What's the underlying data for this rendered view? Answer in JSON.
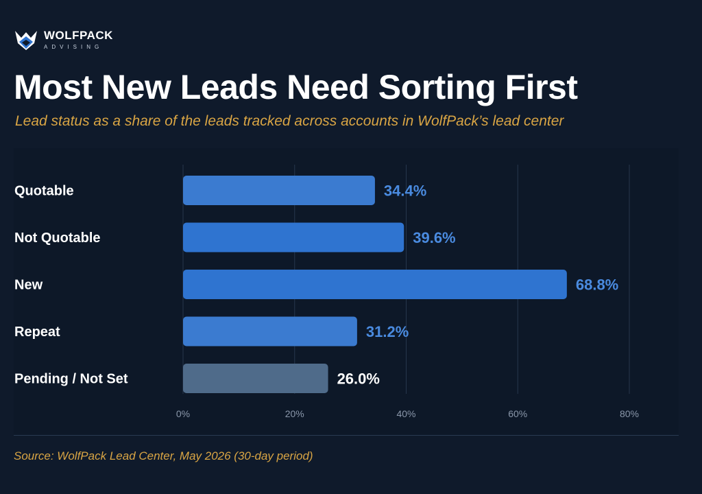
{
  "brand": {
    "name": "WOLFPACK",
    "tagline": "ADVISING"
  },
  "colors": {
    "background": "#0f1a2b",
    "accent": "#d9a544",
    "bar_primary": "#2f74d0",
    "bar_secondary": "#3b7bd0",
    "bar_muted": "#4f6b8a",
    "value_label": "#4a8be0"
  },
  "chart_data": {
    "type": "bar",
    "orientation": "horizontal",
    "title": "Most New Leads Need Sorting First",
    "subtitle": "Lead status as a share of the leads tracked across accounts in WolfPack’s lead center",
    "categories": [
      "Quotable",
      "Not Quotable",
      "New",
      "Repeat",
      "Pending / Not Set"
    ],
    "values": [
      34.4,
      39.6,
      68.8,
      31.2,
      26.0
    ],
    "value_labels": [
      "34.4%",
      "39.6%",
      "68.8%",
      "31.2%",
      "26.0%"
    ],
    "bar_colors": [
      "#3b7bd0",
      "#2f74d0",
      "#2f74d0",
      "#3b7bd0",
      "#4f6b8a"
    ],
    "label_colors": [
      "#4a8be0",
      "#4a8be0",
      "#4a8be0",
      "#4a8be0",
      "#ffffff"
    ],
    "xlim": [
      0,
      80
    ],
    "xticks": [
      0,
      20,
      40,
      60,
      80
    ],
    "xtick_labels": [
      "0%",
      "20%",
      "40%",
      "60%",
      "80%"
    ],
    "grid": "vertical"
  },
  "source": "Source: WolfPack Lead Center, May 2026 (30-day period)"
}
